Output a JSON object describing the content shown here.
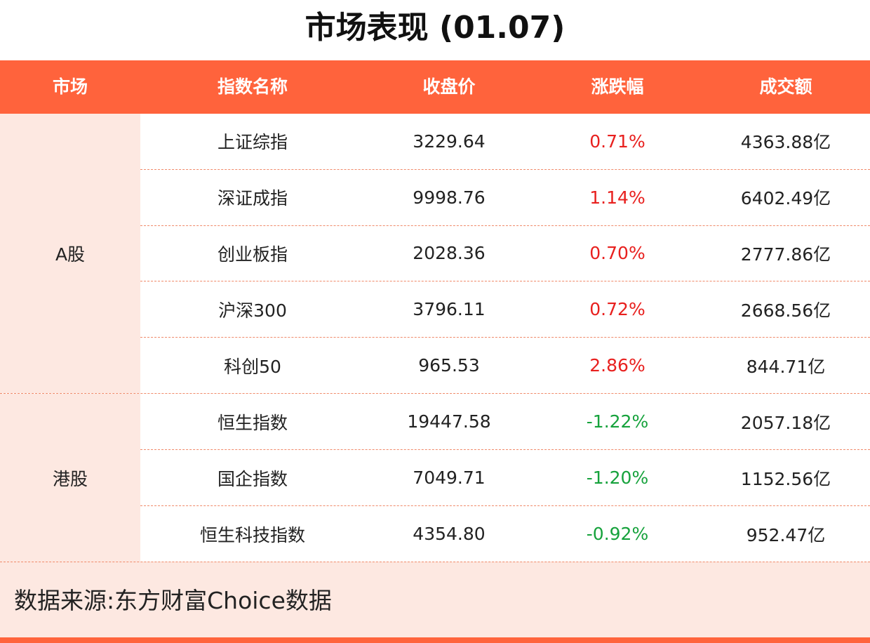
{
  "title": "市场表现 (01.07)",
  "header": {
    "market": "市场",
    "index_name": "指数名称",
    "close": "收盘价",
    "change": "涨跌幅",
    "turnover": "成交额"
  },
  "groups": [
    {
      "market": "A股",
      "rows": [
        {
          "name": "上证综指",
          "close": "3229.64",
          "change": "0.71%",
          "turnover": "4363.88亿"
        },
        {
          "name": "深证成指",
          "close": "9998.76",
          "change": "1.14%",
          "turnover": "6402.49亿"
        },
        {
          "name": "创业板指",
          "close": "2028.36",
          "change": "0.70%",
          "turnover": "2777.86亿"
        },
        {
          "name": "沪深300",
          "close": "3796.11",
          "change": "0.72%",
          "turnover": "2668.56亿"
        },
        {
          "name": "科创50",
          "close": "965.53",
          "change": "2.86%",
          "turnover": "844.71亿"
        }
      ]
    },
    {
      "market": "港股",
      "rows": [
        {
          "name": "恒生指数",
          "close": "19447.58",
          "change": "-1.22%",
          "turnover": "2057.18亿"
        },
        {
          "name": "国企指数",
          "close": "7049.71",
          "change": "-1.20%",
          "turnover": "1152.56亿"
        },
        {
          "name": "恒生科技指数",
          "close": "4354.80",
          "change": "-0.92%",
          "turnover": "952.47亿"
        }
      ]
    }
  ],
  "footer": {
    "source": "数据来源:东方财富Choice数据"
  },
  "colors": {
    "accent": "#ff633c",
    "row_bg": "#fde8e1",
    "up": "#e8201e",
    "down": "#16a23c"
  }
}
